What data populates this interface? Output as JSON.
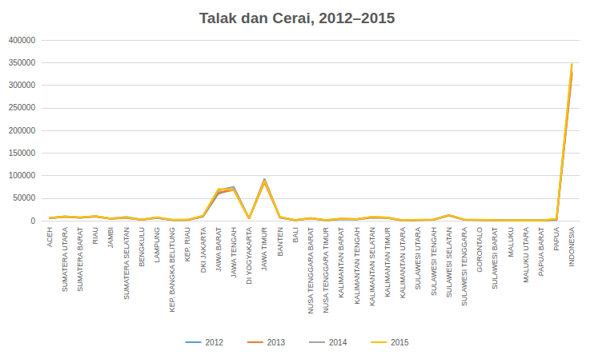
{
  "chart_data": {
    "type": "line",
    "title": "Talak dan Cerai, 2012–2015",
    "categories": [
      "ACEH",
      "SUMATERA UTARA",
      "SUMATERA BARAT",
      "RIAU",
      "JAMBI",
      "SUMATERA SELATAN",
      "BENGKULU",
      "LAMPUNG",
      "KEP. BANGKA BELITUNG",
      "KEP. RIAU",
      "DKI JAKARTA",
      "JAWA BARAT",
      "JAWA TENGAH",
      "DI YOGYAKARTA",
      "JAWA TIMUR",
      "BANTEN",
      "BALI",
      "NUSA TENGGARA BARAT",
      "NUSA TENGGARA TIMUR",
      "KALIMANTAN BARAT",
      "KALIMANTAN TENGAH",
      "KALIMANTAN SELATAN",
      "KALIMANTAN TIMUR",
      "KALIMANTAN UTARA",
      "SULAWESI UTARA",
      "SULAWESI TENGAH",
      "SULAWESI SELATAN",
      "SULAWESI TENGGARA",
      "GORONTALO",
      "SULAWESI BARAT",
      "MALUKU",
      "MALUKU UTARA",
      "PAPUA BARAT",
      "PAPUA",
      "INDONESIA"
    ],
    "series": [
      {
        "name": "2012",
        "color": "#5b9bd5",
        "values": [
          5000,
          8500,
          6500,
          9000,
          4000,
          6000,
          2000,
          6000,
          1500,
          1500,
          9000,
          60000,
          70000,
          4500,
          90000,
          7000,
          1000,
          5000,
          800,
          3500,
          3000,
          7000,
          6000,
          0,
          1500,
          2000,
          11000,
          2000,
          1500,
          800,
          600,
          700,
          500,
          1500,
          330000
        ]
      },
      {
        "name": "2013",
        "color": "#ed7d31",
        "values": [
          5500,
          9000,
          7000,
          9500,
          4500,
          7000,
          2200,
          7000,
          1600,
          1700,
          10000,
          62000,
          68000,
          5000,
          85000,
          7500,
          1100,
          5500,
          900,
          4000,
          3500,
          7500,
          6500,
          0,
          1600,
          2200,
          12000,
          2200,
          1600,
          900,
          700,
          800,
          600,
          2000,
          325000
        ]
      },
      {
        "name": "2014",
        "color": "#a5a5a5",
        "values": [
          5800,
          9500,
          7000,
          10000,
          4500,
          8000,
          2300,
          6500,
          1700,
          1800,
          10500,
          67000,
          75000,
          5000,
          93000,
          8000,
          1200,
          5500,
          1000,
          4000,
          3500,
          8000,
          7000,
          500,
          1700,
          2300,
          12500,
          2300,
          1700,
          900,
          700,
          800,
          600,
          3000,
          345000
        ]
      },
      {
        "name": "2015",
        "color": "#ffc000",
        "values": [
          6000,
          9000,
          7500,
          10000,
          4500,
          7000,
          2500,
          7500,
          1800,
          2000,
          11000,
          70000,
          68000,
          5000,
          88000,
          8500,
          1200,
          5500,
          1000,
          4500,
          3500,
          8500,
          7000,
          800,
          1800,
          2500,
          12000,
          2400,
          1800,
          1000,
          800,
          900,
          700,
          4000,
          348000
        ]
      }
    ],
    "ylim": [
      0,
      400000
    ],
    "yticks": [
      0,
      50000,
      100000,
      150000,
      200000,
      250000,
      300000,
      350000,
      400000
    ],
    "grid": true,
    "legend": "bottom"
  }
}
